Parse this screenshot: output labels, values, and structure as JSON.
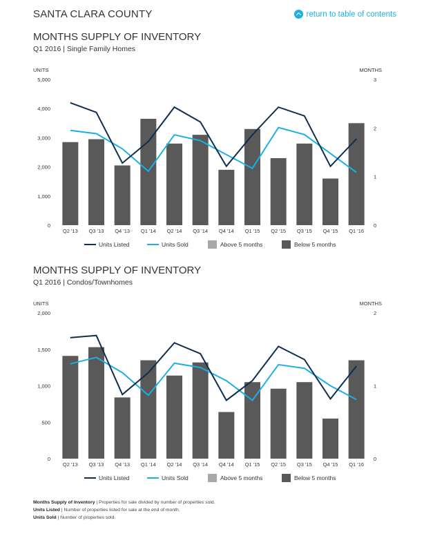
{
  "header": {
    "title": "SANTA CLARA COUNTY",
    "toc_label": "return to table of contents"
  },
  "colors": {
    "units_listed": "#0f2d4d",
    "units_sold": "#1ab0e5",
    "above_5_months": "#a8a8a8",
    "below_5_months": "#595959"
  },
  "chart_data": [
    {
      "type": "bar",
      "title": "MONTHS SUPPLY OF INVENTORY",
      "subtitle": "Q1 2016 | Single Family Homes",
      "ylabel_left": "UNITS",
      "ylabel_right": "MONTHS",
      "left_ticks": [
        "0",
        "1,000",
        "2,000",
        "3,000",
        "4,000",
        "5,000"
      ],
      "right_ticks": [
        "0",
        "1",
        "2",
        "3"
      ],
      "ylim_left": [
        0,
        5000
      ],
      "ylim_right": [
        0,
        3
      ],
      "categories": [
        "Q2 '13",
        "Q3 '13",
        "Q4 '13",
        "Q1 '14",
        "Q2 '14",
        "Q3 '14",
        "Q4 '14",
        "Q1 '15",
        "Q2 '15",
        "Q3 '15",
        "Q4 '15",
        "Q1 '16"
      ],
      "series": [
        {
          "name": "Units Listed",
          "kind": "line",
          "axis": "left",
          "values": [
            4200,
            3870,
            2130,
            2870,
            4050,
            3540,
            2020,
            3100,
            4050,
            3750,
            2020,
            2960
          ]
        },
        {
          "name": "Units Sold",
          "kind": "line",
          "axis": "left",
          "values": [
            3250,
            3140,
            2620,
            1850,
            3100,
            2900,
            2420,
            1950,
            3350,
            3110,
            2460,
            1810
          ]
        },
        {
          "name": "Above 5 months",
          "kind": "bar",
          "axis": "right",
          "values": [
            0,
            0,
            0,
            0,
            0,
            0,
            0,
            0,
            0,
            0,
            0,
            0
          ]
        },
        {
          "name": "Below 5 months",
          "kind": "bar",
          "axis": "right",
          "values": [
            1.71,
            1.77,
            1.23,
            2.19,
            1.68,
            1.86,
            1.14,
            1.98,
            1.38,
            1.68,
            0.96,
            2.1
          ]
        }
      ],
      "legend": "bottom"
    },
    {
      "type": "bar",
      "title": "MONTHS SUPPLY OF INVENTORY",
      "subtitle": "Q1 2016 | Condos/Townhomes",
      "ylabel_left": "UNITS",
      "ylabel_right": "MONTHS",
      "left_ticks": [
        "0",
        "500",
        "1,000",
        "1,500",
        "2,000"
      ],
      "right_ticks": [
        "0",
        "1",
        "2"
      ],
      "ylim_left": [
        0,
        2000
      ],
      "ylim_right": [
        0,
        2
      ],
      "categories": [
        "Q2 '13",
        "Q3 '13",
        "Q4 '13",
        "Q1 '14",
        "Q2 '14",
        "Q3 '14",
        "Q4 '14",
        "Q1 '15",
        "Q2 '15",
        "Q3 '15",
        "Q4 '15",
        "Q1 '16"
      ],
      "series": [
        {
          "name": "Units Listed",
          "kind": "line",
          "axis": "left",
          "values": [
            1660,
            1690,
            880,
            1180,
            1590,
            1440,
            800,
            1070,
            1540,
            1360,
            820,
            1270
          ]
        },
        {
          "name": "Units Sold",
          "kind": "line",
          "axis": "left",
          "values": [
            1300,
            1390,
            1180,
            870,
            1310,
            1250,
            1070,
            800,
            1290,
            1240,
            1000,
            810
          ]
        },
        {
          "name": "Above 5 months",
          "kind": "bar",
          "axis": "right",
          "values": [
            0,
            0,
            0,
            0,
            0,
            0,
            0,
            0,
            0,
            0,
            0,
            0
          ]
        },
        {
          "name": "Below 5 months",
          "kind": "bar",
          "axis": "right",
          "values": [
            1.41,
            1.53,
            0.84,
            1.35,
            1.14,
            1.32,
            0.64,
            1.05,
            0.96,
            1.05,
            0.55,
            1.35
          ]
        }
      ],
      "legend": "bottom"
    }
  ],
  "footnotes": [
    {
      "term": "Months Supply of Inventory",
      "definition": " | Properties for sale divided by number of properties sold."
    },
    {
      "term": "Units Listed",
      "definition": " | Number of properties listed for sale at the end of month."
    },
    {
      "term": "Units Sold",
      "definition": " | Number of properties sold."
    }
  ]
}
